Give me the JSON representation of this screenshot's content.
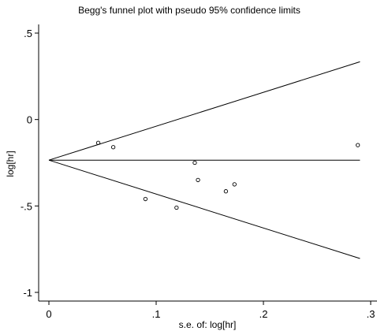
{
  "chart_data": {
    "type": "scatter",
    "title": "Begg's funnel plot with pseudo 95% confidence limits",
    "xlabel": "s.e. of: log[hr]",
    "ylabel": "log[hr]",
    "xlim": [
      0,
      0.3
    ],
    "ylim": [
      -1,
      0.5
    ],
    "x_ticks": [
      {
        "value": 0,
        "label": "0"
      },
      {
        "value": 0.1,
        "label": ".1"
      },
      {
        "value": 0.2,
        "label": ".2"
      },
      {
        "value": 0.3,
        "label": ".3"
      }
    ],
    "y_ticks": [
      {
        "value": 0.5,
        "label": ".5"
      },
      {
        "value": 0,
        "label": "0"
      },
      {
        "value": -0.5,
        "label": "-.5"
      },
      {
        "value": -1,
        "label": "-1"
      }
    ],
    "grid": false,
    "pooled_estimate": -0.235,
    "confidence_limits": {
      "upper": [
        [
          0,
          -0.235
        ],
        [
          0.29,
          0.334
        ]
      ],
      "lower": [
        [
          0,
          -0.235
        ],
        [
          0.29,
          -0.804
        ]
      ]
    },
    "points": [
      {
        "x": 0.046,
        "y": -0.135
      },
      {
        "x": 0.06,
        "y": -0.16
      },
      {
        "x": 0.09,
        "y": -0.46
      },
      {
        "x": 0.119,
        "y": -0.51
      },
      {
        "x": 0.136,
        "y": -0.25
      },
      {
        "x": 0.139,
        "y": -0.35
      },
      {
        "x": 0.165,
        "y": -0.415
      },
      {
        "x": 0.173,
        "y": -0.375
      },
      {
        "x": 0.288,
        "y": -0.148
      }
    ]
  }
}
